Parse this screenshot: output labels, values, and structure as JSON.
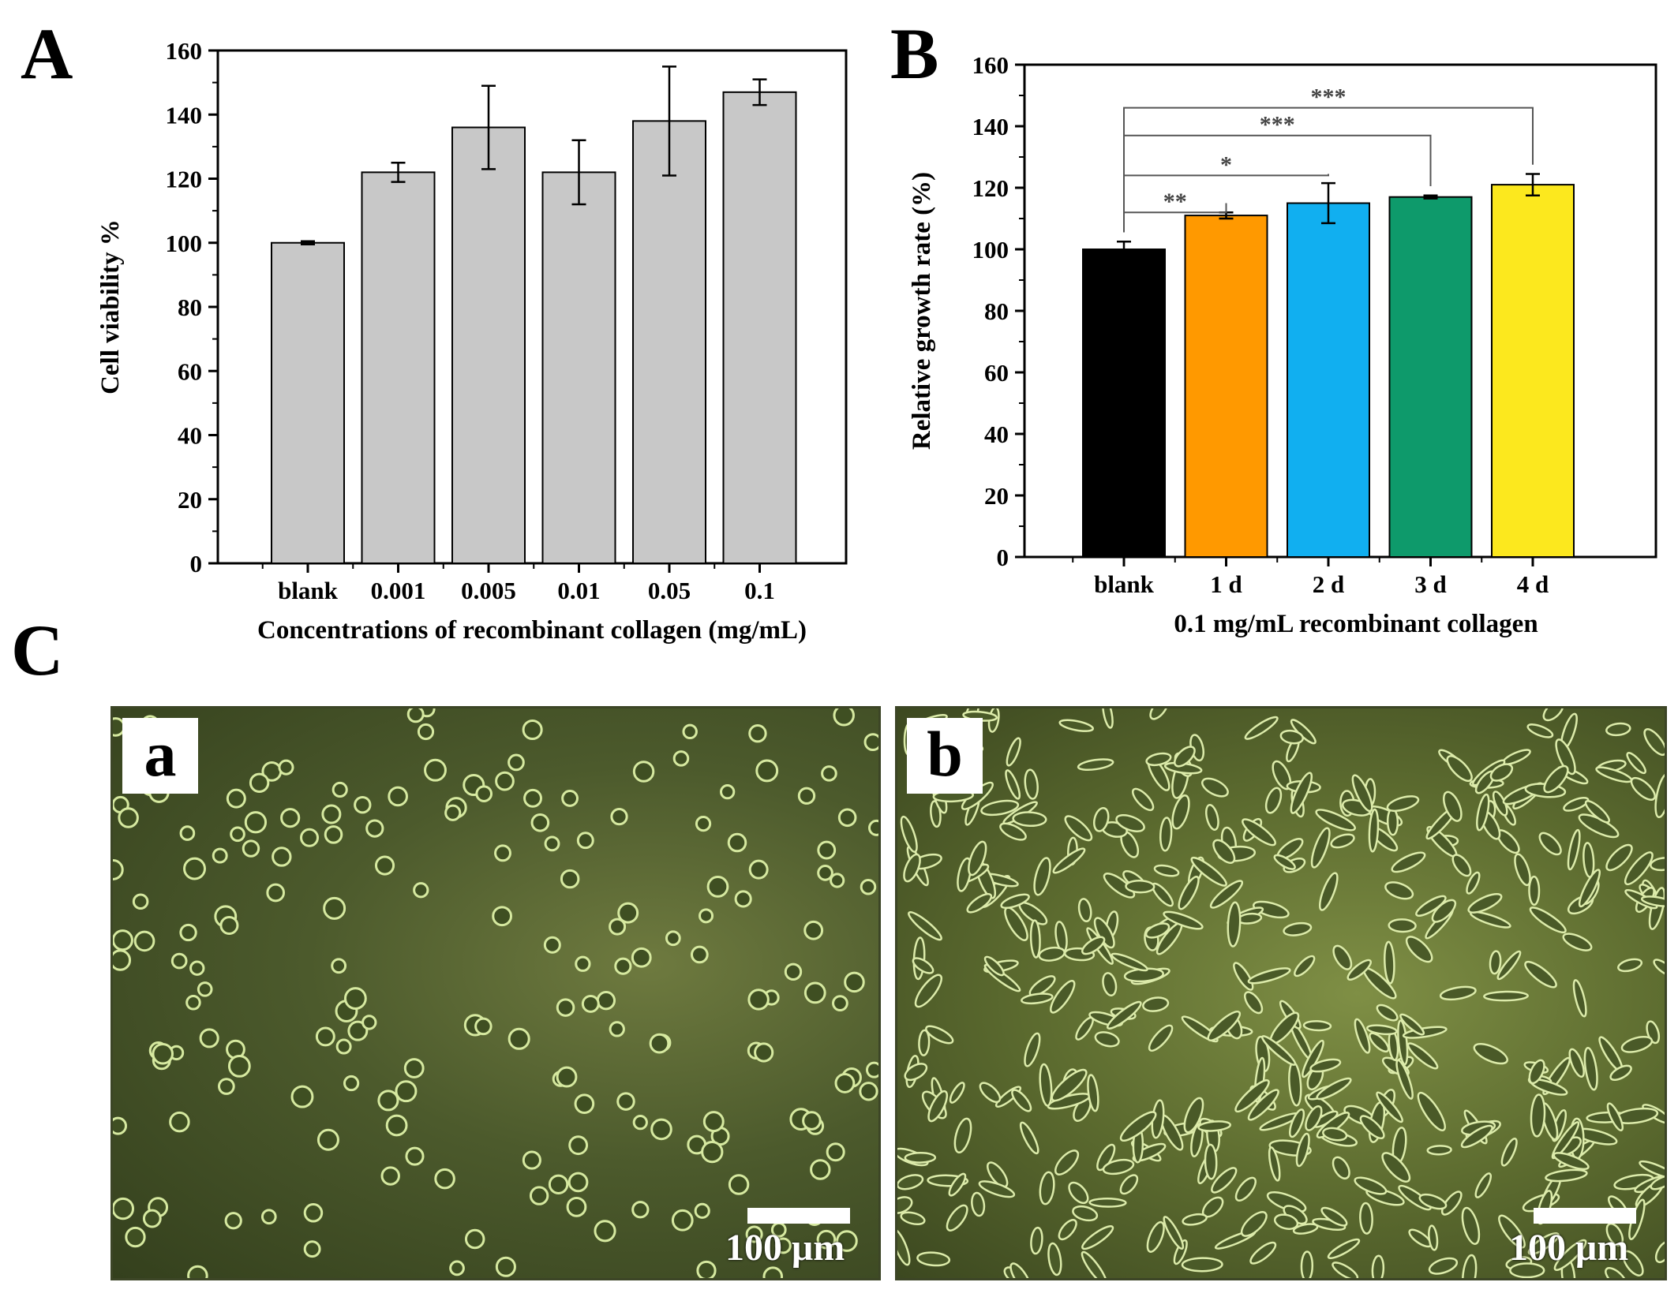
{
  "panels": {
    "A": "A",
    "B": "B",
    "C": "C"
  },
  "chart_data": [
    {
      "type": "bar",
      "panel": "A",
      "categories": [
        "blank",
        "0.001",
        "0.005",
        "0.01",
        "0.05",
        "0.1"
      ],
      "values": [
        100,
        122,
        136,
        122,
        138,
        147
      ],
      "errors": [
        0.5,
        3,
        13,
        10,
        17,
        4
      ],
      "xlabel": "Concentrations of recombinant collagen (mg/mL)",
      "ylabel": "Cell viability %",
      "ylim": [
        0,
        160
      ],
      "yticks": [
        0,
        20,
        40,
        60,
        80,
        100,
        120,
        140,
        160
      ],
      "colors": [
        "#c8c8c8",
        "#c8c8c8",
        "#c8c8c8",
        "#c8c8c8",
        "#c8c8c8",
        "#c8c8c8"
      ]
    },
    {
      "type": "bar",
      "panel": "B",
      "categories": [
        "blank",
        "1 d",
        "2 d",
        "3 d",
        "4 d"
      ],
      "values": [
        100,
        111,
        115,
        117,
        121
      ],
      "errors": [
        2.5,
        1,
        6.5,
        0.5,
        3.5
      ],
      "xlabel": "0.1 mg/mL recombinant collagen",
      "ylabel": "Relative growth rate (%)",
      "ylim": [
        0,
        160
      ],
      "yticks": [
        0,
        20,
        40,
        60,
        80,
        100,
        120,
        140,
        160
      ],
      "colors": [
        "#000000",
        "#ff9900",
        "#11aff0",
        "#0e9a6b",
        "#fce81e"
      ],
      "significance": [
        {
          "from": "blank",
          "to": "1 d",
          "label": "**",
          "level": 112
        },
        {
          "from": "blank",
          "to": "2 d",
          "label": "*",
          "level": 124
        },
        {
          "from": "blank",
          "to": "3 d",
          "label": "***",
          "level": 137
        },
        {
          "from": "blank",
          "to": "4 d",
          "label": "***",
          "level": 146
        }
      ]
    }
  ],
  "micrographs": [
    {
      "label": "a",
      "scale_text": "100 μm",
      "cell_shape": "round"
    },
    {
      "label": "b",
      "scale_text": "100 μm",
      "cell_shape": "spindle"
    }
  ]
}
